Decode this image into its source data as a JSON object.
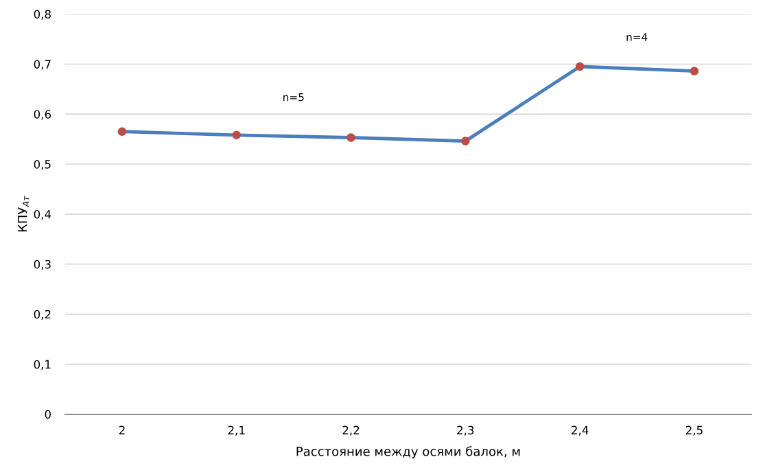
{
  "chart_data": {
    "type": "line",
    "xlabel": "Расстояние между осями балок, м",
    "ylabel": "КПУ$_{Ат}$",
    "categories": [
      "2",
      "2,1",
      "2,2",
      "2,3",
      "2,4",
      "2,5"
    ],
    "series": [
      {
        "color": "#4a7ebf",
        "colors": [
          "#be4b48",
          "#be4b48",
          "#be4b48",
          "#be4b48",
          "#be4b48",
          "#be4b48"
        ],
        "values": [
          0.565,
          0.558,
          0.553,
          0.546,
          0.695,
          0.686
        ]
      }
    ],
    "ylim": [
      0,
      0.8
    ],
    "yticks": [
      {
        "value": 0,
        "label": "0"
      },
      {
        "value": 0.1,
        "label": "0,1"
      },
      {
        "value": 0.2,
        "label": "0,2"
      },
      {
        "value": 0.3,
        "label": "0,3"
      },
      {
        "value": 0.4,
        "label": "0,4"
      },
      {
        "value": 0.5,
        "label": "0,5"
      },
      {
        "value": 0.6,
        "label": "0,6"
      },
      {
        "value": 0.7,
        "label": "0,7"
      },
      {
        "value": 0.8,
        "label": "0,8"
      }
    ],
    "annotations": [
      "n=5",
      "n=4"
    ],
    "grid": "y",
    "marker": "circle",
    "line_style": "solid",
    "legend": false
  }
}
